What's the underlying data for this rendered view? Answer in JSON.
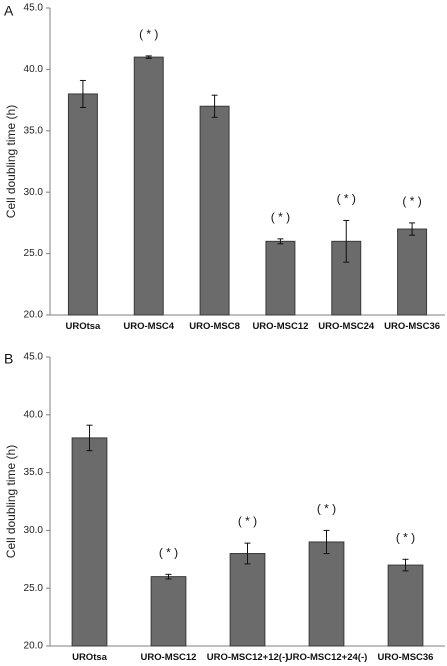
{
  "colors": {
    "bar": "#6b6b6b",
    "bar_stroke": "#3a3a3a",
    "axis": "#808080",
    "error": "#111111"
  },
  "chart_data": [
    {
      "type": "bar",
      "panel": "A",
      "ylabel": "Cell doubling time (h)",
      "ylim": [
        20.0,
        45.0
      ],
      "yticks": [
        "20.0",
        "25.0",
        "30.0",
        "35.0",
        "40.0",
        "45.0"
      ],
      "ytick_values": [
        20,
        25,
        30,
        35,
        40,
        45
      ],
      "grid": false,
      "categories": [
        "UROtsa",
        "URO-MSC4",
        "URO-MSC8",
        "URO-MSC12",
        "URO-MSC24",
        "URO-MSC36"
      ],
      "values": [
        38.0,
        41.0,
        37.0,
        26.0,
        26.0,
        27.0
      ],
      "errors": [
        1.1,
        0.1,
        0.9,
        0.2,
        1.7,
        0.5
      ],
      "annotations": [
        "",
        "( * )",
        "",
        "( * )",
        "( * )",
        "( * )"
      ]
    },
    {
      "type": "bar",
      "panel": "B",
      "ylabel": "Cell doubling time (h)",
      "ylim": [
        20.0,
        45.0
      ],
      "yticks": [
        "20.0",
        "25.0",
        "30.0",
        "35.0",
        "40.0",
        "45.0"
      ],
      "ytick_values": [
        20,
        25,
        30,
        35,
        40,
        45
      ],
      "grid": false,
      "categories": [
        "UROtsa",
        "URO-MSC12",
        "URO-MSC12+12(-)",
        "URO-MSC12+24(-)",
        "URO-MSC36"
      ],
      "values": [
        38.0,
        26.0,
        28.0,
        29.0,
        27.0
      ],
      "errors": [
        1.1,
        0.2,
        0.9,
        1.0,
        0.5
      ],
      "annotations": [
        "",
        "( * )",
        "( * )",
        "( * )",
        "( * )"
      ]
    }
  ]
}
